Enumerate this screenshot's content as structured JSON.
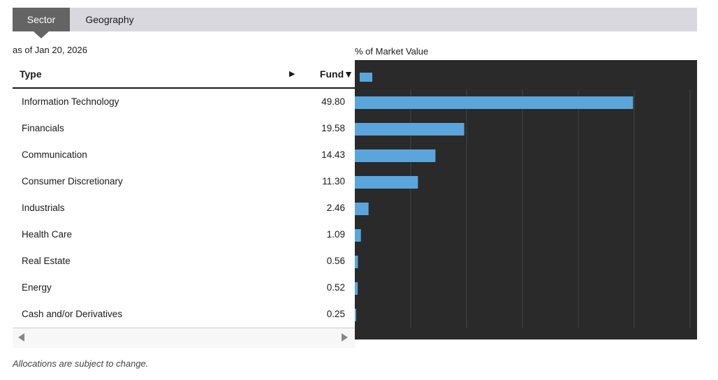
{
  "tabs": [
    {
      "label": "Sector",
      "active": true
    },
    {
      "label": "Geography",
      "active": false
    }
  ],
  "as_of": "as of Jan 20, 2026",
  "table": {
    "col_type": "Type",
    "col_fund": "Fund",
    "arrow_right": "▶",
    "sort_arrow": "▼"
  },
  "chart_label": "% of Market Value",
  "footnote": "Allocations are subject to change.",
  "colors": {
    "bar": "#5aa6dc",
    "chart_bg": "#2a2a2a",
    "grid": "#444444"
  },
  "chart_data": {
    "type": "bar",
    "orientation": "horizontal",
    "title": "% of Market Value",
    "categories": [
      "Information Technology",
      "Financials",
      "Communication",
      "Consumer Discretionary",
      "Industrials",
      "Health Care",
      "Real Estate",
      "Energy",
      "Cash and/or Derivatives"
    ],
    "values": [
      49.8,
      19.58,
      14.43,
      11.3,
      2.46,
      1.09,
      0.56,
      0.52,
      0.25
    ],
    "labels": [
      "49.80",
      "19.58",
      "14.43",
      "11.30",
      "2.46",
      "1.09",
      "0.56",
      "0.52",
      "0.25"
    ],
    "xlim": [
      0,
      60
    ],
    "grid": true,
    "legend": "top-left"
  }
}
